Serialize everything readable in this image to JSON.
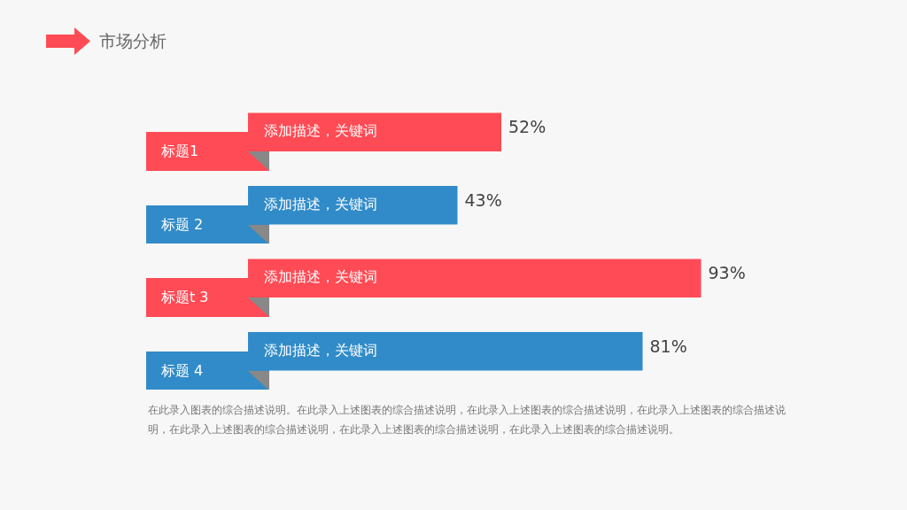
{
  "chart_data": {
    "type": "bar",
    "orientation": "horizontal",
    "title": "市场分析",
    "categories": [
      "标题1",
      "标题 2",
      "标题t 3",
      "标题 4"
    ],
    "values": [
      52,
      43,
      93,
      81
    ],
    "colors": [
      "#ff4b55",
      "#318bc8",
      "#ff4b55",
      "#318bc8"
    ],
    "value_labels": [
      "52%",
      "43%",
      "93%",
      "81%"
    ],
    "tick_labels": false,
    "annotations": [
      {
        "text": "添加描述，关键词",
        "y": "标题1"
      },
      {
        "text": "添加描述，关键词",
        "y": "标题 2"
      },
      {
        "text": "添加描述，关键词",
        "y": "标题t 3"
      },
      {
        "text": "添加描述，关键词",
        "y": "标题 4"
      },
      "在此录入图表的综合描述说明。在此录入上述图表的综合描述说明，在此录入上述图表的综合描述说明，在此录入上述图表的综合描述说明，在此录入上述图表的综合描述说明，在此录入上述图表的综合描述说明，在此录入上述图表的综合描述说明。"
    ]
  }
}
